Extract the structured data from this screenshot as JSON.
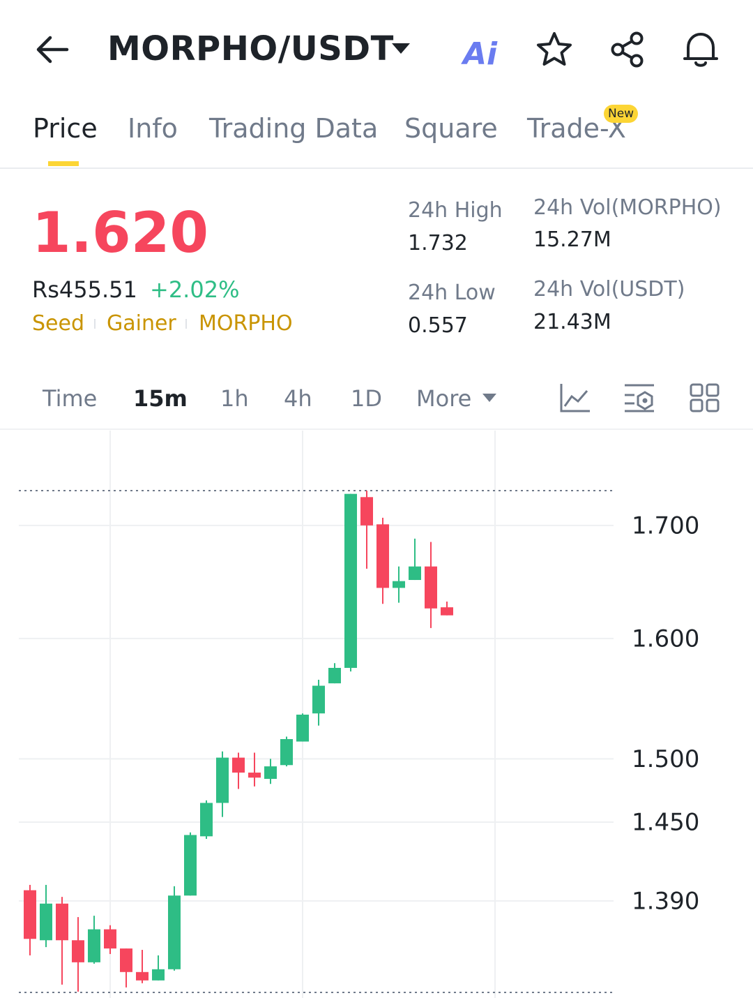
{
  "header": {
    "title": "MORPHO/USDT",
    "ai_label": "Ai"
  },
  "tabs": {
    "items": [
      "Price",
      "Info",
      "Trading Data",
      "Square",
      "Trade-X"
    ],
    "badge": "New"
  },
  "price": {
    "last": "1.620",
    "fiat": "Rs455.51",
    "change": "+2.02%",
    "tags": [
      "Seed",
      "Gainer",
      "MORPHO"
    ]
  },
  "stats": [
    {
      "label": "24h High",
      "value": "1.732"
    },
    {
      "label": "24h Low",
      "value": "0.557"
    },
    {
      "label": "24h Vol(MORPHO)",
      "value": "15.27M"
    },
    {
      "label": "24h Vol(USDT)",
      "value": "21.43M"
    }
  ],
  "intervals": [
    "Time",
    "15m",
    "1h",
    "4h",
    "1D",
    "More"
  ],
  "chart_data": {
    "type": "candlestick",
    "log_scale": true,
    "grid": true,
    "up_color": "#2ebd85",
    "down_color": "#f6465d",
    "ylim": [
      1.32,
      1.79
    ],
    "yticks": [
      {
        "value": 1.7,
        "label": "1.700"
      },
      {
        "value": 1.6,
        "label": "1.600"
      },
      {
        "value": 1.5,
        "label": "1.500"
      },
      {
        "value": 1.45,
        "label": "1.450"
      },
      {
        "value": 1.39,
        "label": "1.390"
      }
    ],
    "open": [
      1.398,
      1.361,
      1.388,
      1.361,
      1.345,
      1.369,
      1.355,
      1.338,
      1.332,
      1.34,
      1.394,
      1.439,
      1.465,
      1.501,
      1.489,
      1.484,
      1.495,
      1.514,
      1.537,
      1.562,
      1.575,
      1.726,
      1.701,
      1.644,
      1.651,
      1.663,
      1.627
    ],
    "high": [
      1.402,
      1.402,
      1.393,
      1.378,
      1.379,
      1.372,
      1.355,
      1.354,
      1.35,
      1.401,
      1.442,
      1.467,
      1.506,
      1.505,
      1.505,
      1.5,
      1.518,
      1.537,
      1.565,
      1.579,
      1.729,
      1.732,
      1.707,
      1.663,
      1.688,
      1.685,
      1.632
    ],
    "low": [
      1.35,
      1.356,
      1.329,
      1.324,
      1.344,
      1.351,
      1.327,
      1.33,
      1.332,
      1.339,
      1.394,
      1.437,
      1.454,
      1.476,
      1.478,
      1.48,
      1.494,
      1.514,
      1.527,
      1.562,
      1.572,
      1.661,
      1.63,
      1.631,
      1.651,
      1.609,
      1.62
    ],
    "close": [
      1.362,
      1.388,
      1.361,
      1.345,
      1.369,
      1.355,
      1.338,
      1.332,
      1.34,
      1.394,
      1.44,
      1.465,
      1.501,
      1.489,
      1.485,
      1.494,
      1.516,
      1.536,
      1.56,
      1.575,
      1.729,
      1.7,
      1.644,
      1.65,
      1.663,
      1.626,
      1.62
    ]
  }
}
